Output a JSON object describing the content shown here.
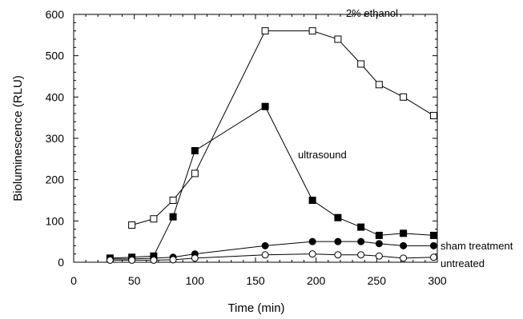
{
  "chart_data": {
    "type": "line",
    "xlabel": "Time (min)",
    "ylabel": "Bioluminescence (RLU)",
    "xlim": [
      0,
      300
    ],
    "ylim": [
      0,
      600
    ],
    "xticks": [
      0,
      50,
      100,
      150,
      200,
      250,
      300
    ],
    "yticks": [
      0,
      100,
      200,
      300,
      400,
      500,
      600
    ],
    "grid": false,
    "series": [
      {
        "name": "2% ethanol",
        "marker": "open-square",
        "x": [
          48,
          66,
          82,
          100,
          158,
          197,
          218,
          237,
          252,
          272,
          297
        ],
        "y": [
          90,
          105,
          150,
          215,
          560,
          560,
          540,
          480,
          430,
          400,
          355
        ]
      },
      {
        "name": "ultrasound",
        "marker": "filled-square",
        "x": [
          30,
          48,
          66,
          82,
          100,
          158,
          197,
          218,
          237,
          252,
          272,
          297
        ],
        "y": [
          10,
          12,
          15,
          110,
          270,
          377,
          150,
          108,
          85,
          65,
          70,
          65
        ]
      },
      {
        "name": "sham treatment",
        "marker": "filled-circle",
        "x": [
          30,
          48,
          66,
          82,
          100,
          158,
          197,
          218,
          237,
          252,
          272,
          297
        ],
        "y": [
          8,
          8,
          10,
          12,
          20,
          40,
          50,
          50,
          50,
          45,
          40,
          40
        ]
      },
      {
        "name": "untreated",
        "marker": "open-circle",
        "x": [
          30,
          48,
          66,
          82,
          100,
          158,
          197,
          218,
          237,
          252,
          272,
          297
        ],
        "y": [
          5,
          5,
          5,
          6,
          10,
          18,
          20,
          18,
          18,
          15,
          10,
          12
        ]
      }
    ]
  }
}
